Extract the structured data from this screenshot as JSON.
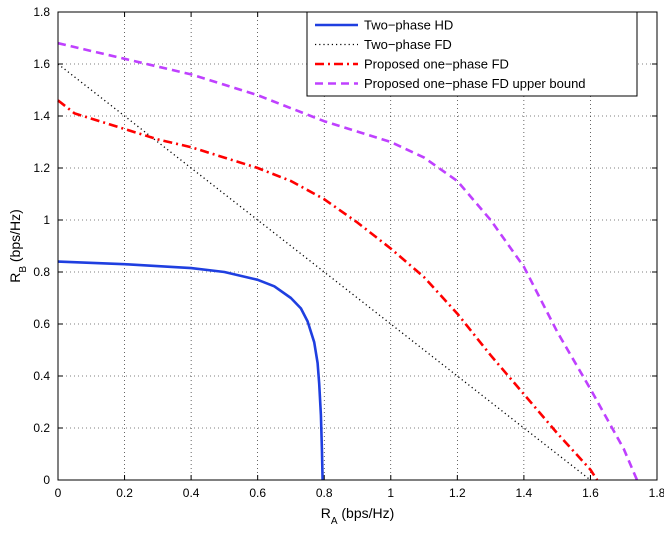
{
  "chart_data": {
    "type": "line",
    "xlabel_main": "R",
    "xlabel_sub": "A",
    "xlabel_unit": " (bps/Hz)",
    "ylabel_main": "R",
    "ylabel_sub": "B",
    "ylabel_unit": " (bps/Hz)",
    "xlim": [
      0,
      1.8
    ],
    "ylim": [
      0,
      1.8
    ],
    "xticks": [
      "0",
      "0.2",
      "0.4",
      "0.6",
      "0.8",
      "1",
      "1.2",
      "1.4",
      "1.6",
      "1.8"
    ],
    "yticks": [
      "0",
      "0.2",
      "0.4",
      "0.6",
      "0.8",
      "1",
      "1.2",
      "1.4",
      "1.6",
      "1.8"
    ],
    "grid": true,
    "legend_position": "top-right",
    "series": [
      {
        "name": "Two−phase HD",
        "color": "#1f3fe0",
        "style": "solid",
        "x": [
          0,
          0.2,
          0.4,
          0.5,
          0.6,
          0.65,
          0.7,
          0.73,
          0.75,
          0.77,
          0.78,
          0.785,
          0.79,
          0.793,
          0.795
        ],
        "y": [
          0.84,
          0.83,
          0.815,
          0.8,
          0.77,
          0.745,
          0.7,
          0.66,
          0.61,
          0.53,
          0.45,
          0.37,
          0.25,
          0.12,
          0.0
        ]
      },
      {
        "name": "Two−phase FD",
        "color": "#000000",
        "style": "dotted",
        "x": [
          0,
          1.6
        ],
        "y": [
          1.6,
          0.0
        ]
      },
      {
        "name": "Proposed one−phase FD",
        "color": "#ff0000",
        "style": "dashdot",
        "x": [
          0,
          0.05,
          0.1,
          0.2,
          0.3,
          0.4,
          0.5,
          0.6,
          0.7,
          0.8,
          0.9,
          1.0,
          1.1,
          1.2,
          1.3,
          1.4,
          1.5,
          1.6,
          1.62
        ],
        "y": [
          1.46,
          1.41,
          1.39,
          1.35,
          1.31,
          1.28,
          1.24,
          1.2,
          1.15,
          1.08,
          0.99,
          0.89,
          0.78,
          0.64,
          0.48,
          0.33,
          0.18,
          0.04,
          0.0
        ]
      },
      {
        "name": "Proposed one−phase FD upper bound",
        "color": "#bf40ff",
        "style": "dashed",
        "x": [
          0,
          0.1,
          0.2,
          0.3,
          0.4,
          0.5,
          0.6,
          0.7,
          0.8,
          0.9,
          1.0,
          1.1,
          1.2,
          1.3,
          1.4,
          1.5,
          1.6,
          1.7,
          1.74
        ],
        "y": [
          1.68,
          1.65,
          1.62,
          1.59,
          1.56,
          1.52,
          1.48,
          1.43,
          1.38,
          1.34,
          1.3,
          1.24,
          1.15,
          1.0,
          0.82,
          0.57,
          0.35,
          0.12,
          0.0
        ]
      }
    ]
  }
}
